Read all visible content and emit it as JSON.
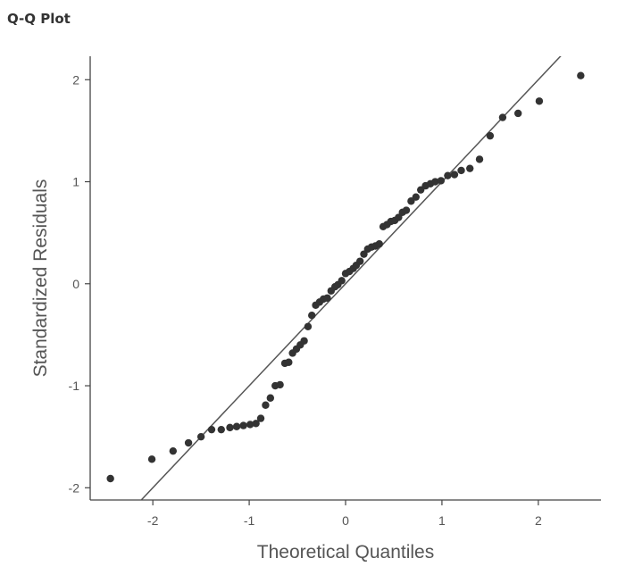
{
  "panel": {
    "title": "Q-Q Plot"
  },
  "colors": {
    "points": "#333333",
    "line": "#555555",
    "axis": "#444444",
    "text": "#555555"
  },
  "chart_data": {
    "type": "scatter",
    "title": "Q-Q Plot",
    "xlabel": "Theoretical Quantiles",
    "ylabel": "Standardized Residuals",
    "xlim": [
      -2.65,
      2.65
    ],
    "ylim": [
      -2.12,
      2.23
    ],
    "xticks": [
      -2,
      -1,
      0,
      1,
      2
    ],
    "yticks": [
      -2,
      -1,
      0,
      1,
      2
    ],
    "grid": false,
    "reference_line": {
      "slope": 1,
      "intercept": 0
    },
    "points": [
      [
        -2.44,
        -1.91
      ],
      [
        -2.01,
        -1.72
      ],
      [
        -1.79,
        -1.64
      ],
      [
        -1.63,
        -1.56
      ],
      [
        -1.5,
        -1.5
      ],
      [
        -1.39,
        -1.43
      ],
      [
        -1.29,
        -1.43
      ],
      [
        -1.2,
        -1.41
      ],
      [
        -1.13,
        -1.4
      ],
      [
        -1.06,
        -1.39
      ],
      [
        -0.99,
        -1.38
      ],
      [
        -0.93,
        -1.37
      ],
      [
        -0.88,
        -1.32
      ],
      [
        -0.83,
        -1.19
      ],
      [
        -0.78,
        -1.12
      ],
      [
        -0.73,
        -1.0
      ],
      [
        -0.68,
        -0.99
      ],
      [
        -0.63,
        -0.78
      ],
      [
        -0.59,
        -0.77
      ],
      [
        -0.55,
        -0.68
      ],
      [
        -0.51,
        -0.64
      ],
      [
        -0.47,
        -0.6
      ],
      [
        -0.43,
        -0.56
      ],
      [
        -0.39,
        -0.42
      ],
      [
        -0.35,
        -0.31
      ],
      [
        -0.31,
        -0.21
      ],
      [
        -0.27,
        -0.18
      ],
      [
        -0.23,
        -0.15
      ],
      [
        -0.19,
        -0.14
      ],
      [
        -0.15,
        -0.07
      ],
      [
        -0.11,
        -0.03
      ],
      [
        -0.08,
        -0.01
      ],
      [
        -0.04,
        0.03
      ],
      [
        0.0,
        0.1
      ],
      [
        0.04,
        0.12
      ],
      [
        0.08,
        0.15
      ],
      [
        0.11,
        0.18
      ],
      [
        0.15,
        0.22
      ],
      [
        0.19,
        0.29
      ],
      [
        0.23,
        0.34
      ],
      [
        0.27,
        0.36
      ],
      [
        0.31,
        0.37
      ],
      [
        0.35,
        0.39
      ],
      [
        0.39,
        0.56
      ],
      [
        0.43,
        0.58
      ],
      [
        0.47,
        0.61
      ],
      [
        0.51,
        0.62
      ],
      [
        0.55,
        0.65
      ],
      [
        0.59,
        0.7
      ],
      [
        0.63,
        0.72
      ],
      [
        0.68,
        0.81
      ],
      [
        0.73,
        0.85
      ],
      [
        0.78,
        0.92
      ],
      [
        0.83,
        0.96
      ],
      [
        0.88,
        0.98
      ],
      [
        0.93,
        1.0
      ],
      [
        0.99,
        1.01
      ],
      [
        1.06,
        1.06
      ],
      [
        1.13,
        1.07
      ],
      [
        1.2,
        1.11
      ],
      [
        1.29,
        1.13
      ],
      [
        1.39,
        1.22
      ],
      [
        1.5,
        1.45
      ],
      [
        1.63,
        1.63
      ],
      [
        1.79,
        1.67
      ],
      [
        2.01,
        1.79
      ],
      [
        2.44,
        2.04
      ]
    ]
  }
}
